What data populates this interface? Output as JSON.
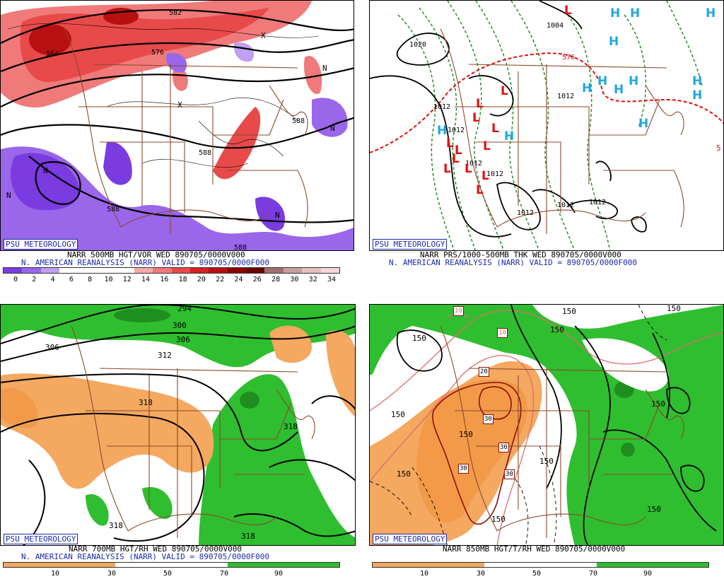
{
  "branding": "PSU METEOROLOGY",
  "panels": [
    {
      "id": "p500",
      "title_line": "NARR 500MB HGT/VOR WED 890705/0000V000",
      "valid_line": "N. AMERICAN REANALYSIS (NARR) VALID = 890705/0000F000",
      "colorbar_labels": [
        "0",
        "2",
        "4",
        "6",
        "8",
        "10",
        "12",
        "14",
        "16",
        "18",
        "20",
        "22",
        "24",
        "26",
        "28",
        "30",
        "32",
        "34"
      ],
      "colorbar_colors": [
        "#7a3be0",
        "#9a66ea",
        "#bfa0f2",
        "#ffffff",
        "#ffffff",
        "#ffffff",
        "#ffffff",
        "#f7a9a9",
        "#f07a7a",
        "#e84a4a",
        "#d82020",
        "#b81010",
        "#8a0000",
        "#6a0000",
        "#a07070",
        "#c9a0a0",
        "#e6c0c0",
        "#f5d8d8"
      ],
      "contour_labels": [
        "582",
        "564",
        "576",
        "588",
        "588",
        "588",
        "588",
        "N",
        "N",
        "N",
        "N",
        "N",
        "X",
        "X"
      ]
    },
    {
      "id": "psfc",
      "title_line": "NARR PRS/1000-500MB THK WED 890705/0000V000",
      "valid_line": "N. AMERICAN REANALYSIS (NARR) VALID = 890705/0000F000",
      "contour_labels": [
        "1020",
        "1004",
        "1012",
        "1012",
        "1012",
        "1012",
        "1012",
        "1012",
        "1012",
        "1012",
        "576",
        "5"
      ],
      "highs": [
        "H",
        "H",
        "H",
        "H",
        "H",
        "H",
        "H",
        "H",
        "H",
        "H",
        "H",
        "H",
        "H"
      ],
      "lows": [
        "L",
        "L",
        "L",
        "L",
        "L",
        "L",
        "L",
        "L",
        "L",
        "L",
        "L",
        "L",
        "L"
      ]
    },
    {
      "id": "p700",
      "title_line": "NARR 700MB HGT/RH WED 890705/0000V000",
      "valid_line": "N. AMERICAN REANALYSIS (NARR) VALID = 890705/0000F000",
      "colorbar_labels": [
        "10",
        "30",
        "50",
        "70",
        "90"
      ],
      "contour_labels": [
        "294",
        "300",
        "306",
        "306",
        "312",
        "318",
        "318",
        "318",
        "318"
      ]
    },
    {
      "id": "p850",
      "title_line": "NARR 850MB HGT/T/RH WED 890705/0000V000",
      "colorbar_labels": [
        "10",
        "30",
        "50",
        "70",
        "90"
      ],
      "contour_labels": [
        "150",
        "150",
        "150",
        "150",
        "150",
        "150",
        "150",
        "150",
        "150",
        "150",
        "150"
      ],
      "temp_labels": [
        "10",
        "10",
        "20",
        "30",
        "30",
        "30",
        "30"
      ]
    }
  ],
  "colors": {
    "state_lines": "#8b4a2b",
    "rh_dry": "#f4a860",
    "rh_moist": "#2fbe2f",
    "low_symbol": "#e01010",
    "high_symbol": "#20a8e0",
    "brand_blue": "#1a2aa8"
  }
}
